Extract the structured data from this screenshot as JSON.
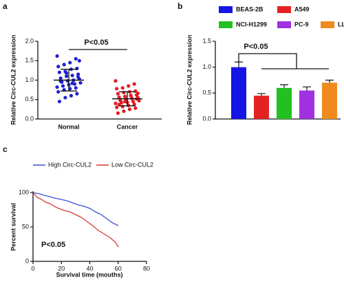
{
  "chart_data": [
    {
      "type": "scatter",
      "panel_label": "a",
      "y_label": "Relative Circ-CUL2 expression",
      "annotation": "P<0.05",
      "categories": [
        "Normal",
        "Cancer"
      ],
      "series": [
        {
          "color": "#1f1fd1",
          "values": [
            1.62,
            1.55,
            1.45,
            1.4,
            1.35,
            1.3,
            1.28,
            1.22,
            1.2,
            1.15,
            1.12,
            1.1,
            1.05,
            1.03,
            1.0,
            0.98,
            0.95,
            0.93,
            0.9,
            0.88,
            0.85,
            0.82,
            0.8,
            0.78,
            0.75,
            0.7,
            0.65,
            0.6,
            0.55,
            0.45,
            1.08,
            0.92,
            1.18,
            0.97,
            1.5
          ],
          "mean": 1.0,
          "sd": 0.28
        },
        {
          "color": "#e8191f",
          "values": [
            0.98,
            0.9,
            0.85,
            0.8,
            0.78,
            0.72,
            0.7,
            0.68,
            0.65,
            0.62,
            0.6,
            0.58,
            0.56,
            0.55,
            0.53,
            0.5,
            0.48,
            0.47,
            0.45,
            0.43,
            0.42,
            0.4,
            0.38,
            0.35,
            0.32,
            0.3,
            0.28,
            0.25,
            0.2,
            0.15,
            0.52,
            0.61,
            0.45,
            0.37,
            0.66
          ],
          "mean": 0.52,
          "sd": 0.18
        }
      ],
      "ylim": [
        0,
        2
      ],
      "yticks": [
        {
          "value": 0,
          "label": "0.0"
        },
        0.5,
        {
          "value": 1,
          "label": "1.0"
        },
        1.5,
        {
          "value": 2,
          "label": "2.0"
        }
      ]
    },
    {
      "type": "bar",
      "panel_label": "b",
      "y_label": "Relative Circ-CUL2 expression",
      "annotation": "P<0.05",
      "series": [
        {
          "name": "BEAS-2B",
          "color": "#1515e6",
          "values": [
            1.0
          ],
          "errors": [
            0.1
          ]
        },
        {
          "name": "A549",
          "color": "#e52222",
          "values": [
            0.45
          ],
          "errors": [
            0.04
          ]
        },
        {
          "name": "NCI-H1299",
          "color": "#22c022",
          "values": [
            0.6
          ],
          "errors": [
            0.06
          ]
        },
        {
          "name": "PC-9",
          "color": "#a030e0",
          "values": [
            0.55
          ],
          "errors": [
            0.07
          ]
        },
        {
          "name": "LLC",
          "color": "#f08a1e",
          "values": [
            0.7
          ],
          "errors": [
            0.05
          ]
        }
      ],
      "ylim": [
        0,
        1.5
      ],
      "yticks": [
        {
          "value": 0,
          "label": "0.0"
        },
        0.5,
        {
          "value": 1,
          "label": "1.0"
        },
        1.5
      ]
    },
    {
      "type": "line",
      "panel_label": "c",
      "y_label": "Percent survival",
      "x_label": "Survival time (mouths)",
      "annotation": "P<0.05",
      "series": [
        {
          "name": "High Circ-CUL2",
          "color": "#3b4fd8",
          "x": [
            0,
            5,
            8,
            12,
            15,
            20,
            24,
            28,
            32,
            36,
            40,
            44,
            48,
            52,
            56,
            60
          ],
          "values": [
            100,
            98,
            96,
            94,
            92,
            90,
            88,
            85,
            82,
            80,
            77,
            72,
            68,
            62,
            56,
            52
          ]
        },
        {
          "name": "Low Circ-CUL2",
          "color": "#d63a3a",
          "x": [
            0,
            3,
            6,
            9,
            12,
            15,
            18,
            22,
            26,
            30,
            34,
            38,
            42,
            46,
            50,
            54,
            58,
            60
          ],
          "values": [
            100,
            93,
            90,
            86,
            84,
            80,
            77,
            74,
            72,
            68,
            64,
            58,
            52,
            45,
            40,
            35,
            28,
            21
          ]
        }
      ],
      "xlim": [
        0,
        80
      ],
      "xticks": [
        0,
        20,
        40,
        60,
        80
      ],
      "ylim": [
        0,
        100
      ],
      "yticks": [
        0,
        50,
        100
      ]
    }
  ]
}
